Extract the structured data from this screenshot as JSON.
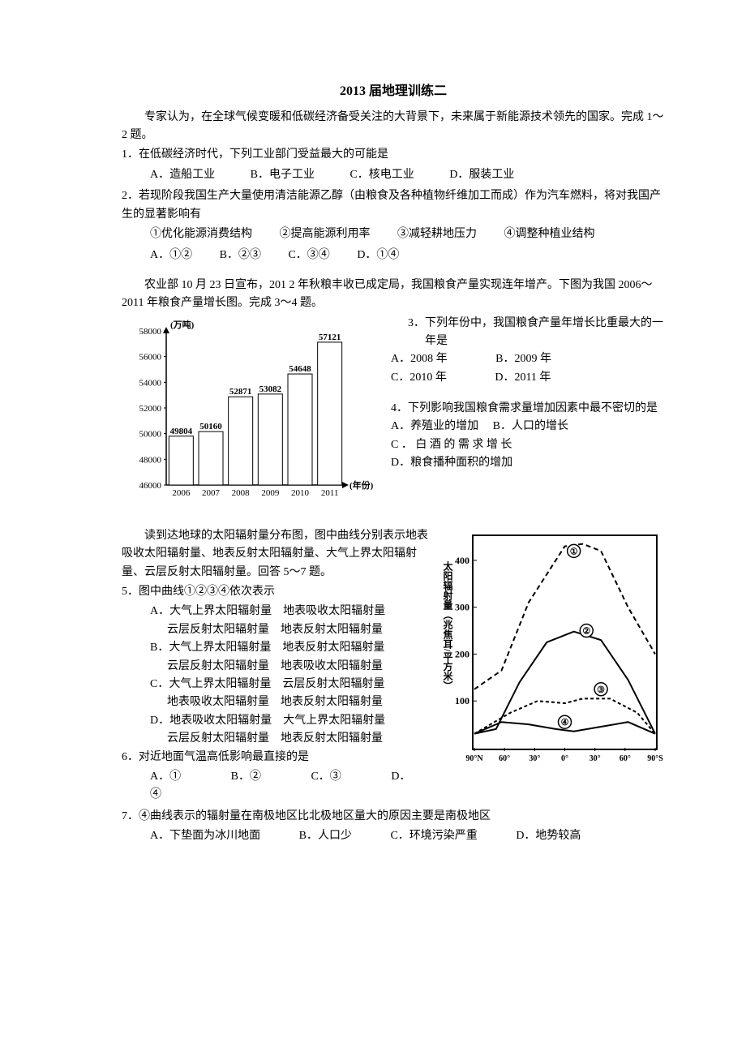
{
  "title": "2013 届地理训练二",
  "intro1": "专家认为，在全球气候变暖和低碳经济备受关注的大背景下，未来属于新能源技术领先的国家。完成 1～2 题。",
  "q1": "1．在低碳经济时代，下列工业部门受益最大的可能是",
  "q1opts": {
    "a": "A．造船工业",
    "b": "B．电子工业",
    "c": "C．核电工业",
    "d": "D．服装工业"
  },
  "q2": "2．若现阶段我国生产大量使用清洁能源乙醇（由粮食及各种植物纤维加工而成）作为汽车燃料，将对我国产生的显著影响有",
  "q2line": {
    "a": "①优化能源消费结构",
    "b": "②提高能源利用率",
    "c": "③减轻耕地压力",
    "d": "④调整种植业结构"
  },
  "q2opts": {
    "a": "A．①②",
    "b": "B．②③",
    "c": "C．③④",
    "d": "D．①④"
  },
  "intro2a": "农业部 10 月 23 日宣布，201 2 年秋粮丰收已成定局，我国粮食产量实现连年增产。下图为我国 2006～2011 年粮食产量增长图。完成 3～4 题。",
  "q3": "3．下列年份中，我国粮食产量年增长比重最大的一年是",
  "q3opts": {
    "a": "A．2008 年",
    "b": "B．2009 年",
    "c": "C．2010 年",
    "d": "D．2011 年"
  },
  "q4": "4．下列影响我国粮食需求量增加因素中最不密切的是",
  "q4opts": {
    "a": "A．养殖业的增加",
    "b": "B．人口的增长",
    "c": "C ． 白 酒 的 需 求 增 长",
    "d": "D．粮食播种面积的增加"
  },
  "intro3": "读到达地球的太阳辐射量分布图，图中曲线分别表示地表吸收太阳辐射量、地表反射太阳辐射量、大气上界太阳辐射量、云层反射太阳辐射量。回答 5～7 题。",
  "q5": "5．图中曲线①②③④依次表示",
  "q5a1": "A．大气上界太阳辐射量　地表吸收太阳辐射量",
  "q5a2": "云层反射太阳辐射量　地表反射太阳辐射量",
  "q5b1": "B．大气上界太阳辐射量　地表反射太阳辐射量",
  "q5b2": "云层反射太阳辐射量　地表吸收太阳辐射量",
  "q5c1": "C．大气上界太阳辐射量　云层反射太阳辐射量",
  "q5c2": "地表吸收太阳辐射量　地表反射太阳辐射量",
  "q5d1": "D．地表吸收太阳辐射量　大气上界太阳辐射量",
  "q5d2": "云层反射太阳辐射量　地表反射太阳辐射量",
  "q6": "6．对近地面气温高低影响最直接的是",
  "q6opts": {
    "a": "A．①",
    "b": "B．②",
    "c": "C．③",
    "d": "D．④"
  },
  "q7": "7．④曲线表示的辐射量在南极地区比北极地区量大的原因主要是南极地区",
  "q7opts": {
    "a": "A．下垫面为冰川地面",
    "b": "B．人口少",
    "c": "C．环境污染严重",
    "d": "D．地势较高"
  },
  "barChart": {
    "type": "bar",
    "yLabel": "(万吨)",
    "xLabel": "(年份)",
    "yMin": 46000,
    "yMax": 58000,
    "yStep": 2000,
    "categories": [
      "2006",
      "2007",
      "2008",
      "2009",
      "2010",
      "2011"
    ],
    "values": [
      49804,
      50160,
      52871,
      53082,
      54648,
      57121
    ],
    "barFill": "#ffffff",
    "barStroke": "#000000",
    "barWidth": 30,
    "fontSize": 11,
    "axisColor": "#000000"
  },
  "lineChart": {
    "type": "line",
    "yLabelV": "太阳辐射量（兆焦耳/平方米）",
    "yTicks": [
      100,
      200,
      300,
      400
    ],
    "xTicks": [
      "90°N",
      "60°",
      "30°",
      "0°",
      "30°",
      "60°",
      "90°S"
    ],
    "borderColor": "#000000",
    "curves": [
      {
        "label": "①",
        "dash": "6,4",
        "points": [
          [
            0,
            125
          ],
          [
            15,
            165
          ],
          [
            30,
            310
          ],
          [
            50,
            430
          ],
          [
            60,
            435
          ],
          [
            70,
            420
          ],
          [
            85,
            300
          ],
          [
            100,
            200
          ]
        ]
      },
      {
        "label": "②",
        "dash": "",
        "points": [
          [
            0,
            30
          ],
          [
            12,
            40
          ],
          [
            25,
            140
          ],
          [
            40,
            225
          ],
          [
            55,
            248
          ],
          [
            70,
            230
          ],
          [
            85,
            145
          ],
          [
            100,
            30
          ]
        ]
      },
      {
        "label": "③",
        "dash": "4,3",
        "points": [
          [
            0,
            30
          ],
          [
            20,
            75
          ],
          [
            35,
            100
          ],
          [
            50,
            95
          ],
          [
            60,
            105
          ],
          [
            75,
            105
          ],
          [
            90,
            75
          ],
          [
            100,
            30
          ]
        ]
      },
      {
        "label": "④",
        "dash": "",
        "points": [
          [
            0,
            30
          ],
          [
            15,
            55
          ],
          [
            30,
            50
          ],
          [
            45,
            40
          ],
          [
            55,
            35
          ],
          [
            70,
            45
          ],
          [
            85,
            55
          ],
          [
            100,
            30
          ]
        ]
      }
    ],
    "circleLabels": [
      "①",
      "②",
      "③",
      "④"
    ]
  }
}
